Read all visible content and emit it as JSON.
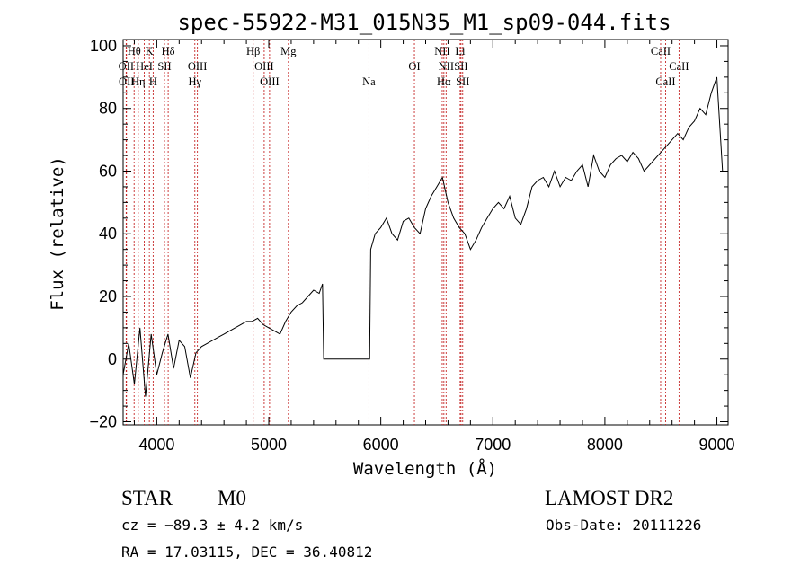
{
  "chart_data": {
    "type": "line",
    "title": "spec-55922-M31_015N35_M1_sp09-044.fits",
    "xlabel": "Wavelength (Å)",
    "ylabel": "Flux (relative)",
    "xlim": [
      3700,
      9100
    ],
    "ylim": [
      -21,
      102
    ],
    "xticks": [
      4000,
      5000,
      6000,
      7000,
      8000,
      9000
    ],
    "xtick_labels": [
      "4000",
      "5000",
      "6000",
      "7000",
      "8000",
      "9000"
    ],
    "yticks": [
      -20,
      0,
      20,
      40,
      60,
      80,
      100
    ],
    "ytick_labels": [
      "−20",
      "0",
      "20",
      "40",
      "60",
      "80",
      "100"
    ],
    "grid": false,
    "series": [
      {
        "x": [
          3700,
          3750,
          3800,
          3850,
          3900,
          3950,
          4000,
          4050,
          4100,
          4150,
          4200,
          4250,
          4300,
          4350,
          4400,
          4450,
          4500,
          4550,
          4600,
          4650,
          4700,
          4750,
          4800,
          4850,
          4900,
          4950,
          5000,
          5050,
          5100,
          5150,
          5200,
          5250,
          5300,
          5350,
          5400,
          5450,
          5480,
          5490,
          5900,
          5910,
          5950,
          6000,
          6050,
          6100,
          6150,
          6200,
          6250,
          6300,
          6350,
          6400,
          6450,
          6500,
          6550,
          6600,
          6650,
          6700,
          6750,
          6800,
          6850,
          6900,
          6950,
          7000,
          7050,
          7100,
          7150,
          7200,
          7250,
          7300,
          7350,
          7400,
          7450,
          7500,
          7550,
          7600,
          7650,
          7700,
          7750,
          7800,
          7850,
          7900,
          7950,
          8000,
          8050,
          8100,
          8150,
          8200,
          8250,
          8300,
          8350,
          8400,
          8450,
          8500,
          8550,
          8600,
          8650,
          8700,
          8750,
          8800,
          8850,
          8900,
          8950,
          9000,
          9050
        ],
        "y": [
          -5,
          5,
          -8,
          10,
          -12,
          8,
          -5,
          2,
          8,
          -3,
          6,
          4,
          -6,
          2,
          4,
          5,
          6,
          7,
          8,
          9,
          10,
          11,
          12,
          12,
          13,
          11,
          10,
          9,
          8,
          12,
          15,
          17,
          18,
          20,
          22,
          21,
          24,
          0,
          0,
          35,
          40,
          42,
          45,
          40,
          38,
          44,
          45,
          42,
          40,
          48,
          52,
          55,
          58,
          50,
          45,
          42,
          40,
          35,
          38,
          42,
          45,
          48,
          50,
          48,
          52,
          45,
          43,
          48,
          55,
          57,
          58,
          55,
          60,
          55,
          58,
          57,
          60,
          62,
          55,
          65,
          60,
          58,
          62,
          64,
          65,
          63,
          66,
          64,
          60,
          62,
          64,
          66,
          68,
          70,
          72,
          70,
          74,
          76,
          80,
          78,
          85,
          90,
          60
        ]
      }
    ],
    "emission_lines": [
      {
        "name": "Hθ",
        "wavelength": 3798,
        "row": 1
      },
      {
        "name": "OII",
        "wavelength": 3727,
        "row": 2
      },
      {
        "name": "HeI",
        "wavelength": 3889,
        "row": 2
      },
      {
        "name": "K",
        "wavelength": 3934,
        "row": 1
      },
      {
        "name": "SII",
        "wavelength": 4069,
        "row": 2
      },
      {
        "name": "H",
        "wavelength": 3968,
        "row": 3
      },
      {
        "name": "Hδ",
        "wavelength": 4102,
        "row": 1
      },
      {
        "name": "OII",
        "wavelength": 3730,
        "row": 3
      },
      {
        "name": "Hη",
        "wavelength": 3835,
        "row": 3
      },
      {
        "name": "OIII",
        "wavelength": 4363,
        "row": 2
      },
      {
        "name": "Hγ",
        "wavelength": 4340,
        "row": 3
      },
      {
        "name": "Hβ",
        "wavelength": 4861,
        "row": 1
      },
      {
        "name": "OIII",
        "wavelength": 4959,
        "row": 2
      },
      {
        "name": "OIII",
        "wavelength": 5007,
        "row": 3
      },
      {
        "name": "Mg",
        "wavelength": 5175,
        "row": 1
      },
      {
        "name": "Na",
        "wavelength": 5894,
        "row": 3
      },
      {
        "name": "OI",
        "wavelength": 6300,
        "row": 2
      },
      {
        "name": "NII",
        "wavelength": 6548,
        "row": 1
      },
      {
        "name": "NII",
        "wavelength": 6583,
        "row": 2
      },
      {
        "name": "Hα",
        "wavelength": 6563,
        "row": 3
      },
      {
        "name": "Li",
        "wavelength": 6708,
        "row": 1
      },
      {
        "name": "SII",
        "wavelength": 6716,
        "row": 2
      },
      {
        "name": "SII",
        "wavelength": 6731,
        "row": 3
      },
      {
        "name": "CaII",
        "wavelength": 8498,
        "row": 1
      },
      {
        "name": "CaII",
        "wavelength": 8542,
        "row": 3
      },
      {
        "name": "CaII",
        "wavelength": 8662,
        "row": 2
      }
    ]
  },
  "info": {
    "class_label": "STAR",
    "subclass": "M0",
    "survey": "LAMOST DR2",
    "cz": "cz = −89.3 ± 4.2 km/s",
    "obs_date": "Obs-Date: 20111226",
    "coords": "RA =  17.03115, DEC =  36.40812"
  }
}
